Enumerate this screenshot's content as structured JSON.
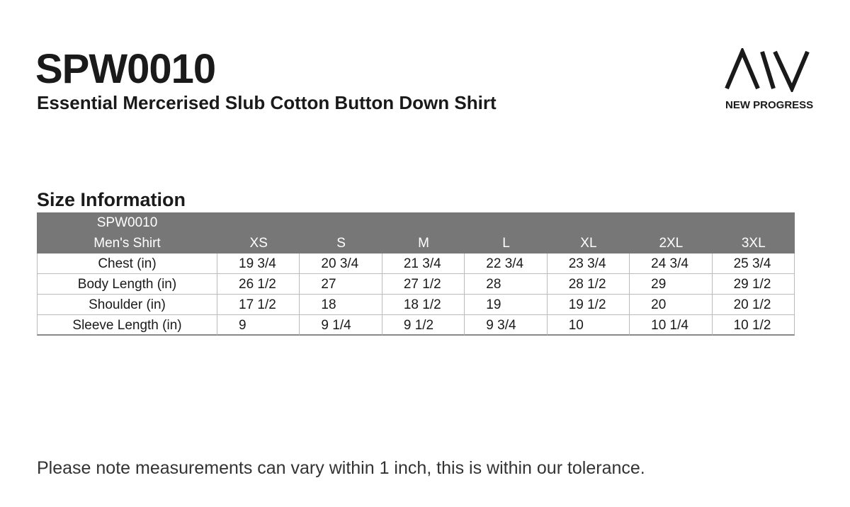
{
  "header": {
    "title": "SPW0010",
    "subtitle": "Essential Mercerised Slub Cotton Button Down Shirt",
    "brand": "NEW PROGRESS"
  },
  "section_title": "Size Information",
  "table": {
    "model": "SPW0010",
    "label": "Men's Shirt",
    "sizes": [
      "XS",
      "S",
      "M",
      "L",
      "XL",
      "2XL",
      "3XL"
    ],
    "rows": [
      {
        "label": "Chest (in)",
        "values": [
          "19 3/4",
          "20 3/4",
          "21 3/4",
          "22 3/4",
          "23 3/4",
          "24 3/4",
          "25 3/4"
        ]
      },
      {
        "label": "Body Length (in)",
        "values": [
          "26 1/2",
          "27",
          "27 1/2",
          "28",
          "28 1/2",
          "29",
          "29 1/2"
        ]
      },
      {
        "label": "Shoulder (in)",
        "values": [
          "17 1/2",
          "18",
          "18 1/2",
          "19",
          "19 1/2",
          "20",
          "20 1/2"
        ]
      },
      {
        "label": "Sleeve Length (in)",
        "values": [
          "9",
          "9 1/4",
          "9 1/2",
          "9 3/4",
          "10",
          "10 1/4",
          "10 1/2"
        ]
      }
    ]
  },
  "note": "Please note measurements can vary within 1 inch, this is within our tolerance."
}
